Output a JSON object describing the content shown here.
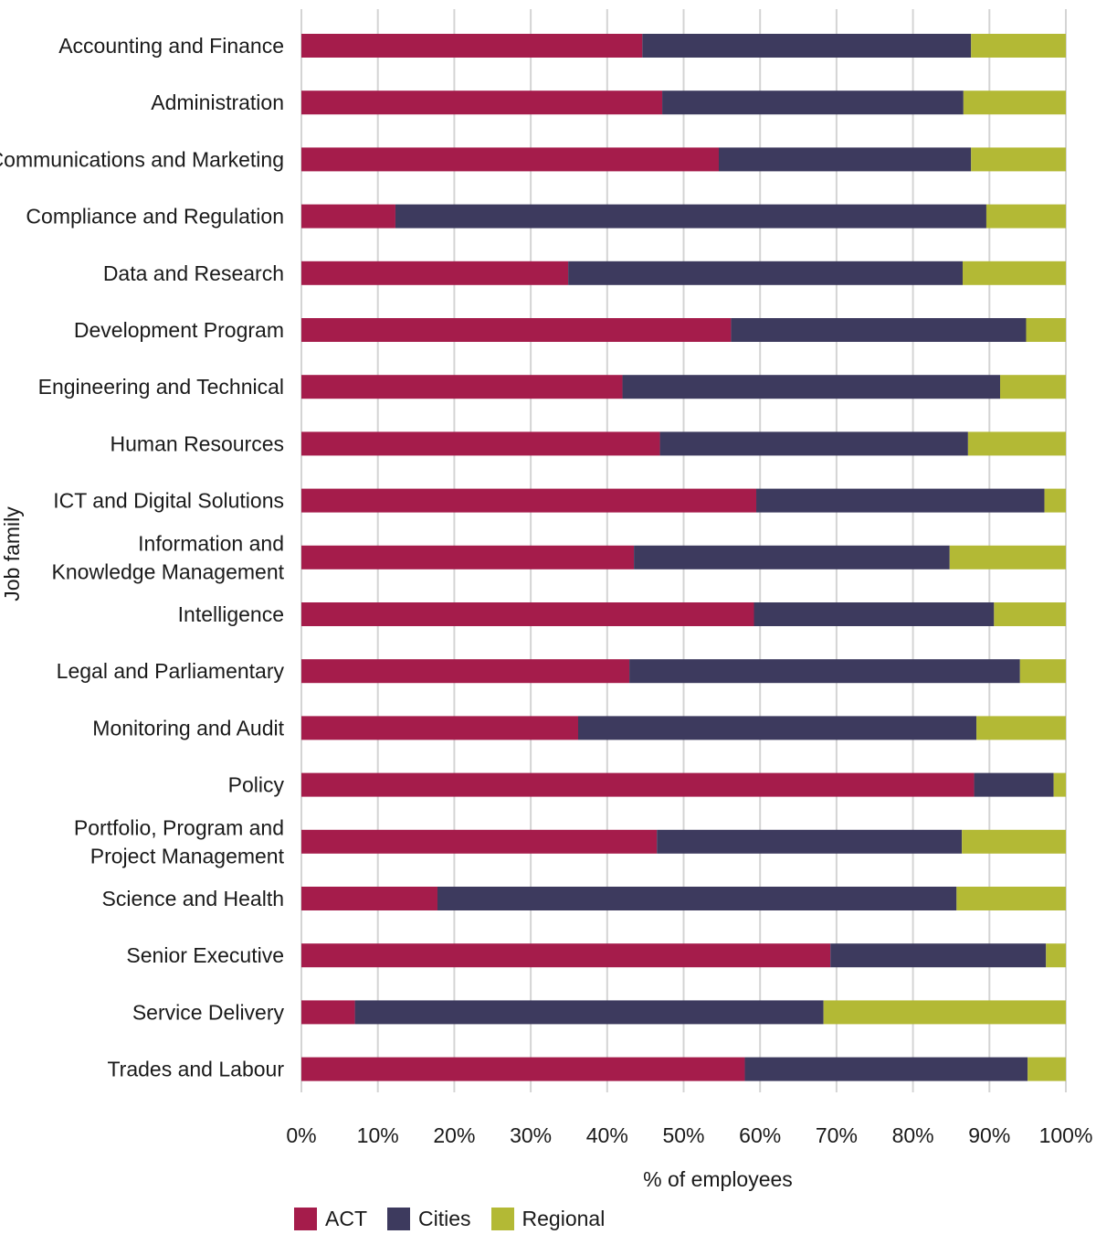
{
  "chart_data": {
    "type": "bar",
    "orientation": "horizontal",
    "stacked": true,
    "categories": [
      "Accounting and Finance",
      "Administration",
      "Communications and Marketing",
      "Compliance and Regulation",
      "Data and Research",
      "Development Program",
      "Engineering and Technical",
      "Human Resources",
      "ICT and Digital Solutions",
      "Information and Knowledge Management",
      "Intelligence",
      "Legal and Parliamentary",
      "Monitoring and Audit",
      "Policy",
      "Portfolio, Program and Project Management",
      "Science and Health",
      "Senior Executive",
      "Service Delivery",
      "Trades and Labour"
    ],
    "category_lines": [
      [
        "Accounting and Finance"
      ],
      [
        "Administration"
      ],
      [
        "Communications and Marketing"
      ],
      [
        "Compliance and Regulation"
      ],
      [
        "Data and Research"
      ],
      [
        "Development Program"
      ],
      [
        "Engineering and Technical"
      ],
      [
        "Human Resources"
      ],
      [
        "ICT and Digital Solutions"
      ],
      [
        "Information and",
        "Knowledge Management"
      ],
      [
        "Intelligence"
      ],
      [
        "Legal and Parliamentary"
      ],
      [
        "Monitoring and Audit"
      ],
      [
        "Policy"
      ],
      [
        "Portfolio, Program and",
        "Project Management"
      ],
      [
        "Science and Health"
      ],
      [
        "Senior Executive"
      ],
      [
        "Service Delivery"
      ],
      [
        "Trades and Labour"
      ]
    ],
    "series": [
      {
        "name": "ACT",
        "color": "#a51c4b",
        "values": [
          44.6,
          47.2,
          54.6,
          12.3,
          34.9,
          56.2,
          42.0,
          46.9,
          59.5,
          43.5,
          59.2,
          42.9,
          36.2,
          88.0,
          46.5,
          17.8,
          69.2,
          7.0,
          58.0
        ]
      },
      {
        "name": "Cities",
        "color": "#3d3a5e",
        "values": [
          43.0,
          39.4,
          33.0,
          77.3,
          51.6,
          38.6,
          49.4,
          40.3,
          37.7,
          41.3,
          31.4,
          51.1,
          52.1,
          10.4,
          39.9,
          67.9,
          28.2,
          61.3,
          37.0
        ]
      },
      {
        "name": "Regional",
        "color": "#b3b935",
        "values": [
          12.4,
          13.4,
          12.4,
          10.4,
          13.5,
          5.2,
          8.6,
          12.8,
          2.8,
          15.2,
          9.4,
          6.0,
          11.7,
          1.6,
          13.6,
          14.3,
          2.6,
          31.7,
          5.0
        ]
      }
    ],
    "xticks": [
      "0%",
      "10%",
      "20%",
      "30%",
      "40%",
      "50%",
      "60%",
      "70%",
      "80%",
      "90%",
      "100%"
    ],
    "xlim": [
      0,
      100
    ],
    "xlabel": "% of employees",
    "ylabel": "Job family",
    "grid": "vertical",
    "legend_position": "bottom-left"
  }
}
